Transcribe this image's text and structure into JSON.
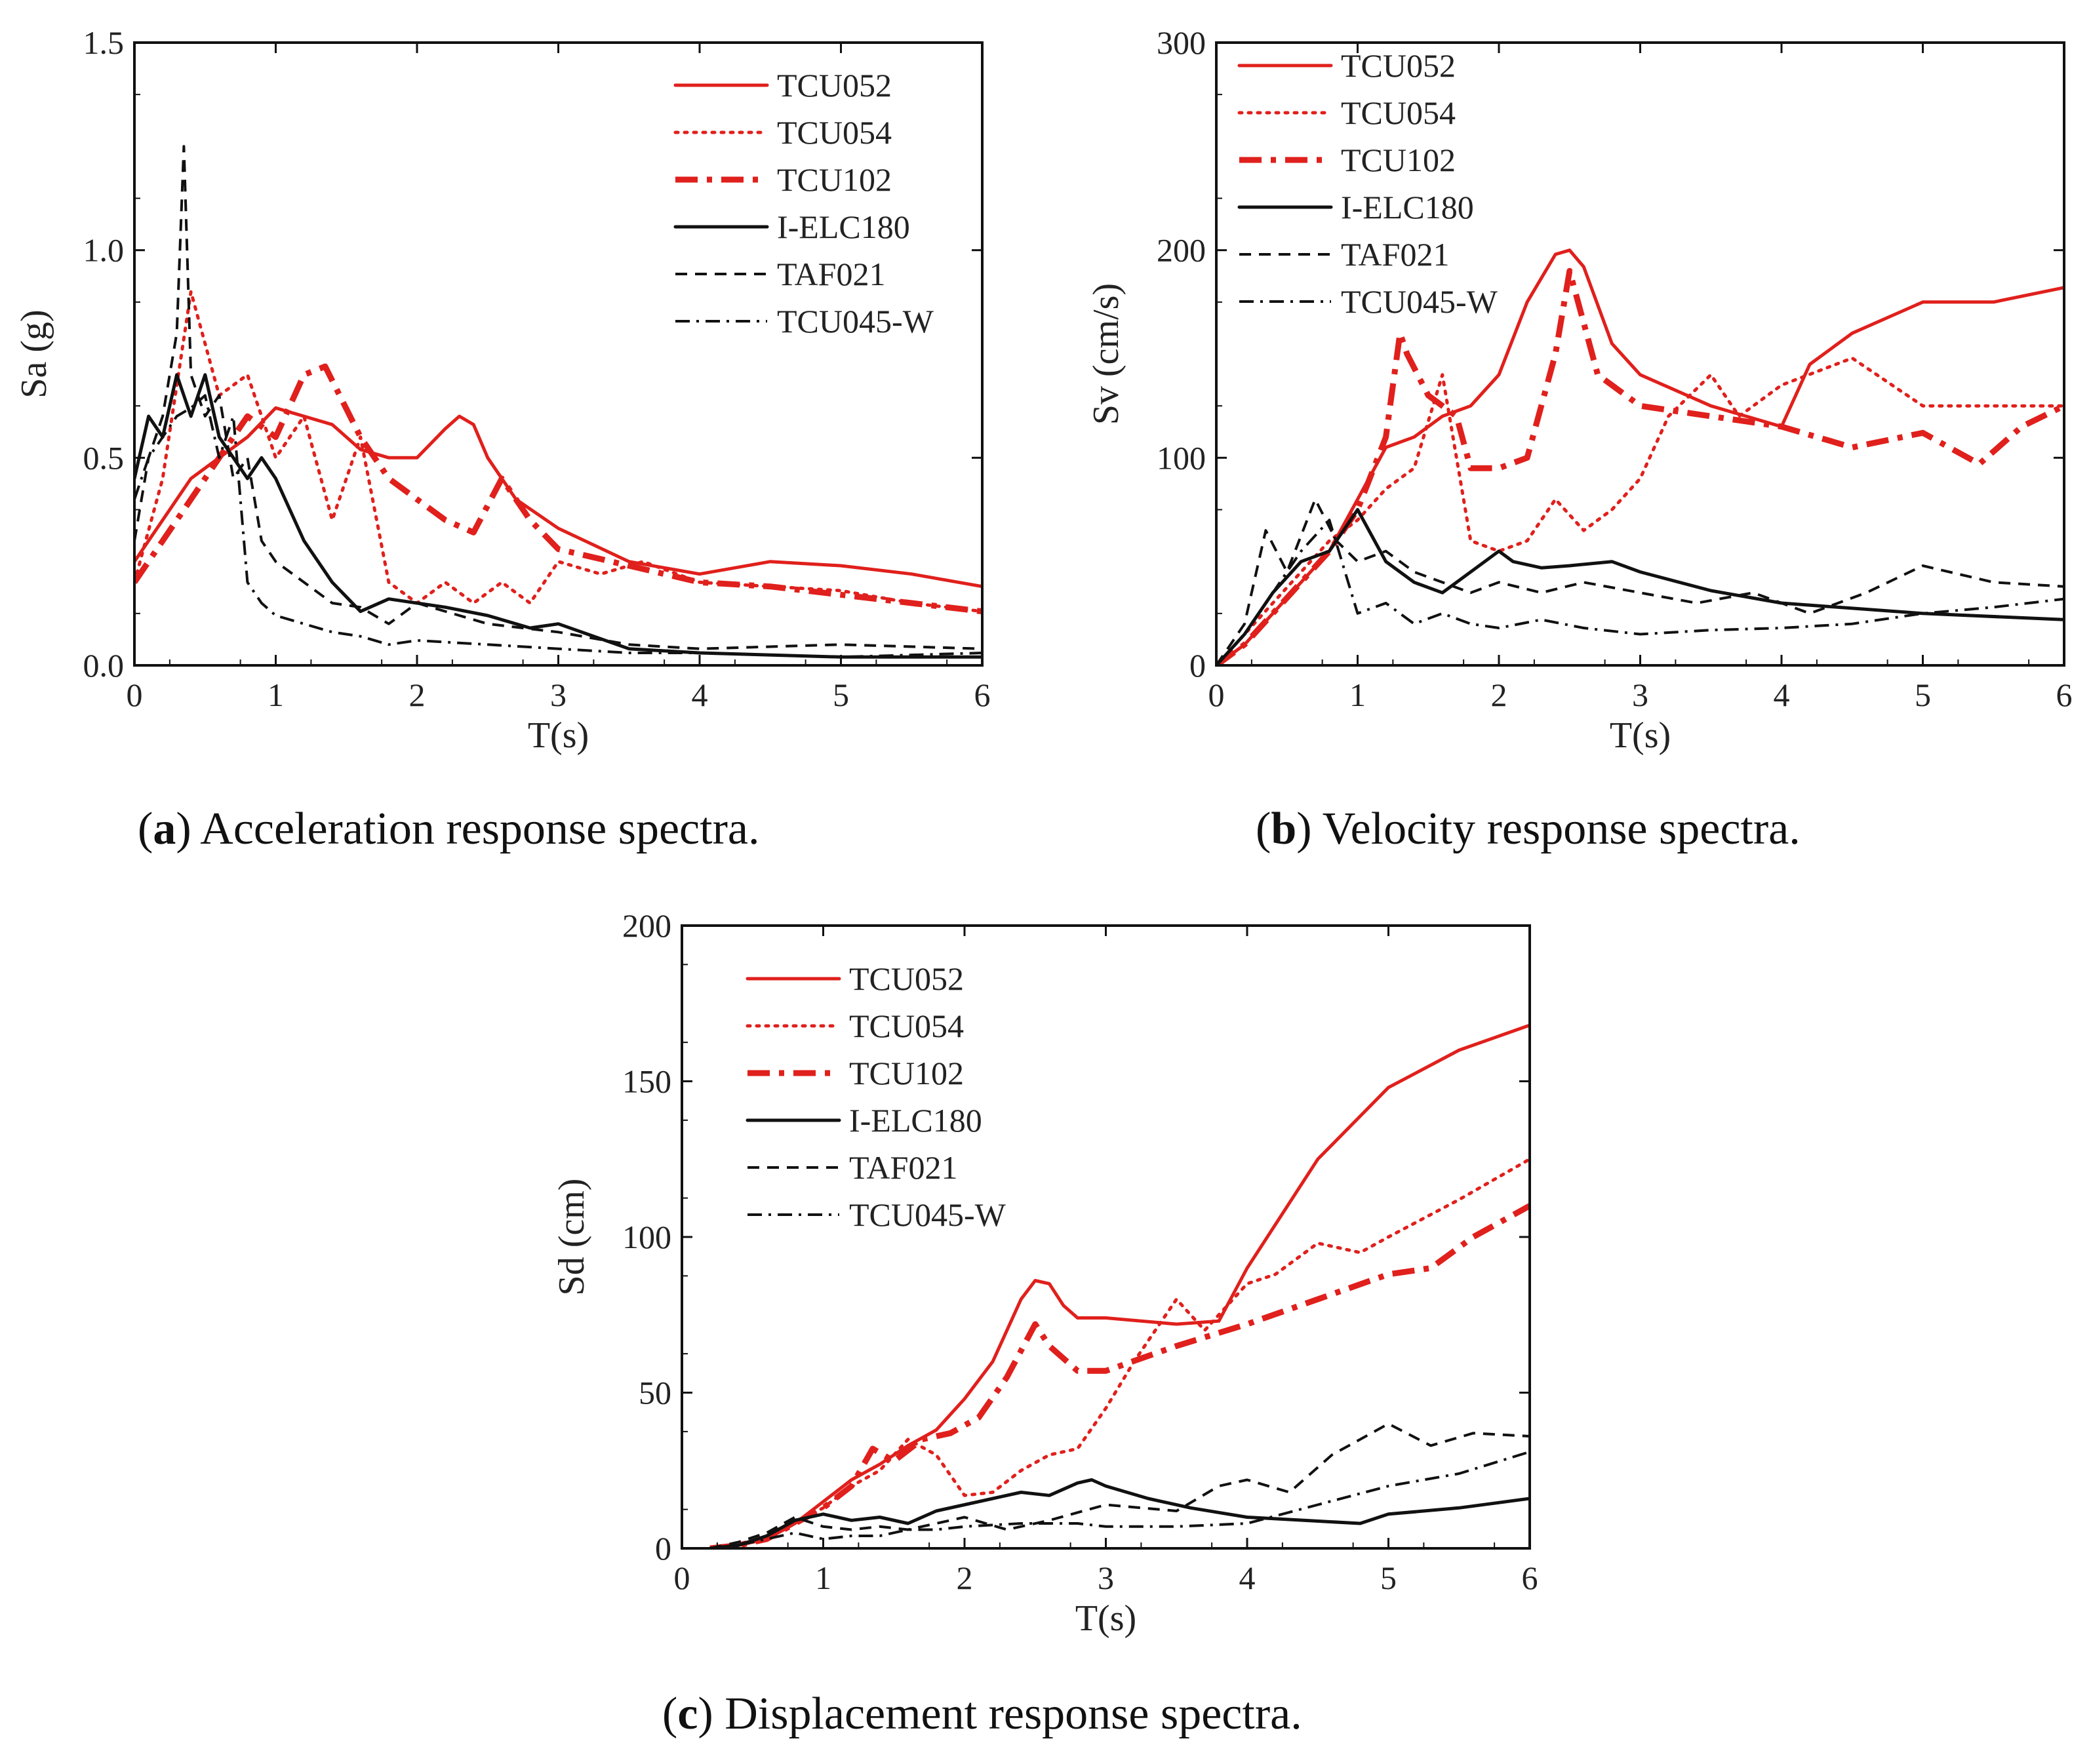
{
  "figure_captions": [
    {
      "letter": "a",
      "text": ") Acceleration response spectra."
    },
    {
      "letter": "b",
      "text": ") Velocity response spectra."
    },
    {
      "letter": "c",
      "text": ") Displacement response spectra."
    }
  ],
  "styles": {
    "TCU052": {
      "color": "#e0201c",
      "dash": "solid"
    },
    "TCU054": {
      "color": "#e0201c",
      "dash": "dot"
    },
    "TCU102": {
      "color": "#e0201c",
      "dash": "dashdot-thick"
    },
    "I-ELC180": {
      "color": "#111111",
      "dash": "solid"
    },
    "TAF021": {
      "color": "#111111",
      "dash": "dash"
    },
    "TCU045-W": {
      "color": "#111111",
      "dash": "dashdot"
    }
  },
  "chart_data": [
    {
      "type": "line",
      "id": "a",
      "title": "",
      "xlabel": "T(s)",
      "ylabel": "Sa (g)",
      "xlim": [
        0,
        6
      ],
      "ylim": [
        0,
        1.5
      ],
      "xticks": [
        "0",
        "1",
        "2",
        "3",
        "4",
        "5",
        "6"
      ],
      "yticks": [
        "0.0",
        "0.5",
        "1.0",
        "1.5"
      ],
      "legend_position": "top-right",
      "series": [
        {
          "name": "TCU052",
          "x": [
            0,
            0.2,
            0.4,
            0.6,
            0.8,
            1.0,
            1.2,
            1.4,
            1.6,
            1.8,
            2.0,
            2.2,
            2.3,
            2.4,
            2.5,
            2.7,
            3.0,
            3.5,
            4.0,
            4.5,
            5.0,
            5.5,
            6.0
          ],
          "y": [
            0.25,
            0.35,
            0.45,
            0.5,
            0.55,
            0.62,
            0.6,
            0.58,
            0.52,
            0.5,
            0.5,
            0.57,
            0.6,
            0.58,
            0.5,
            0.4,
            0.33,
            0.25,
            0.22,
            0.25,
            0.24,
            0.22,
            0.19
          ]
        },
        {
          "name": "TCU054",
          "x": [
            0,
            0.2,
            0.4,
            0.6,
            0.8,
            1.0,
            1.2,
            1.4,
            1.6,
            1.8,
            2.0,
            2.2,
            2.4,
            2.6,
            2.8,
            3.0,
            3.3,
            3.6,
            4.0,
            4.5,
            5.0,
            5.5,
            6.0
          ],
          "y": [
            0.2,
            0.45,
            0.9,
            0.65,
            0.7,
            0.5,
            0.6,
            0.35,
            0.55,
            0.2,
            0.15,
            0.2,
            0.15,
            0.2,
            0.15,
            0.25,
            0.22,
            0.25,
            0.2,
            0.19,
            0.18,
            0.15,
            0.13
          ]
        },
        {
          "name": "TCU102",
          "x": [
            0,
            0.2,
            0.4,
            0.6,
            0.8,
            1.0,
            1.2,
            1.35,
            1.6,
            1.8,
            2.0,
            2.2,
            2.4,
            2.6,
            2.8,
            3.0,
            3.5,
            4.0,
            4.5,
            5.0,
            5.5,
            6.0
          ],
          "y": [
            0.2,
            0.3,
            0.4,
            0.5,
            0.6,
            0.55,
            0.7,
            0.72,
            0.55,
            0.45,
            0.4,
            0.35,
            0.32,
            0.45,
            0.35,
            0.28,
            0.24,
            0.2,
            0.19,
            0.17,
            0.15,
            0.13
          ]
        },
        {
          "name": "I-ELC180",
          "x": [
            0,
            0.1,
            0.2,
            0.3,
            0.4,
            0.5,
            0.6,
            0.7,
            0.8,
            0.9,
            1.0,
            1.2,
            1.4,
            1.6,
            1.8,
            2.0,
            2.2,
            2.5,
            2.8,
            3.0,
            3.5,
            4.0,
            5.0,
            6.0
          ],
          "y": [
            0.45,
            0.6,
            0.55,
            0.7,
            0.6,
            0.7,
            0.55,
            0.5,
            0.45,
            0.5,
            0.45,
            0.3,
            0.2,
            0.13,
            0.16,
            0.15,
            0.14,
            0.12,
            0.09,
            0.1,
            0.04,
            0.03,
            0.02,
            0.02
          ]
        },
        {
          "name": "TAF021",
          "x": [
            0,
            0.1,
            0.2,
            0.3,
            0.35,
            0.4,
            0.5,
            0.6,
            0.7,
            0.8,
            0.9,
            1.0,
            1.2,
            1.4,
            1.6,
            1.8,
            2.0,
            2.5,
            3.0,
            3.5,
            4.0,
            5.0,
            6.0
          ],
          "y": [
            0.3,
            0.5,
            0.6,
            0.8,
            1.25,
            0.7,
            0.6,
            0.65,
            0.45,
            0.5,
            0.3,
            0.25,
            0.2,
            0.15,
            0.14,
            0.1,
            0.15,
            0.1,
            0.08,
            0.05,
            0.04,
            0.05,
            0.04
          ]
        },
        {
          "name": "TCU045-W",
          "x": [
            0,
            0.1,
            0.2,
            0.3,
            0.4,
            0.5,
            0.6,
            0.7,
            0.8,
            0.9,
            1.0,
            1.2,
            1.4,
            1.6,
            1.8,
            2.0,
            2.5,
            3.0,
            3.5,
            4.0,
            5.0,
            6.0
          ],
          "y": [
            0.4,
            0.5,
            0.55,
            0.6,
            0.62,
            0.65,
            0.5,
            0.6,
            0.2,
            0.15,
            0.12,
            0.1,
            0.08,
            0.07,
            0.05,
            0.06,
            0.05,
            0.04,
            0.03,
            0.03,
            0.02,
            0.03
          ]
        }
      ]
    },
    {
      "type": "line",
      "id": "b",
      "title": "",
      "xlabel": "T(s)",
      "ylabel": "Sv (cm/s)",
      "xlim": [
        0,
        6
      ],
      "ylim": [
        0,
        300
      ],
      "xticks": [
        "0",
        "1",
        "2",
        "3",
        "4",
        "5",
        "6"
      ],
      "yticks": [
        "0",
        "100",
        "200",
        "300"
      ],
      "legend_position": "top-left",
      "series": [
        {
          "name": "TCU052",
          "x": [
            0,
            0.2,
            0.4,
            0.6,
            0.8,
            1.0,
            1.2,
            1.4,
            1.6,
            1.8,
            2.0,
            2.2,
            2.4,
            2.5,
            2.6,
            2.8,
            3.0,
            3.5,
            4.0,
            4.2,
            4.5,
            5.0,
            5.5,
            6.0
          ],
          "y": [
            0,
            10,
            25,
            40,
            55,
            80,
            105,
            110,
            120,
            125,
            140,
            175,
            198,
            200,
            192,
            155,
            140,
            125,
            115,
            145,
            160,
            175,
            175,
            182
          ]
        },
        {
          "name": "TCU054",
          "x": [
            0,
            0.2,
            0.4,
            0.6,
            0.8,
            1.0,
            1.2,
            1.4,
            1.6,
            1.8,
            2.0,
            2.2,
            2.4,
            2.6,
            2.8,
            3.0,
            3.2,
            3.5,
            3.7,
            4.0,
            4.5,
            5.0,
            5.5,
            6.0
          ],
          "y": [
            0,
            15,
            30,
            45,
            60,
            70,
            85,
            95,
            140,
            60,
            55,
            60,
            80,
            65,
            75,
            90,
            120,
            140,
            120,
            135,
            148,
            125,
            125,
            125
          ]
        },
        {
          "name": "TCU102",
          "x": [
            0,
            0.2,
            0.4,
            0.6,
            0.8,
            1.0,
            1.2,
            1.3,
            1.35,
            1.5,
            1.7,
            1.8,
            2.0,
            2.2,
            2.4,
            2.5,
            2.7,
            3.0,
            3.5,
            4.0,
            4.5,
            5.0,
            5.4,
            5.7,
            6.0
          ],
          "y": [
            0,
            10,
            25,
            40,
            55,
            75,
            110,
            160,
            150,
            130,
            120,
            95,
            95,
            100,
            150,
            190,
            140,
            125,
            120,
            115,
            105,
            112,
            97,
            115,
            125
          ]
        },
        {
          "name": "I-ELC180",
          "x": [
            0,
            0.2,
            0.4,
            0.6,
            0.8,
            0.95,
            1.0,
            1.2,
            1.4,
            1.6,
            1.8,
            2.0,
            2.1,
            2.3,
            2.5,
            2.8,
            3.0,
            3.5,
            4.0,
            5.0,
            6.0
          ],
          "y": [
            0,
            15,
            35,
            50,
            55,
            70,
            75,
            50,
            40,
            35,
            45,
            55,
            50,
            47,
            48,
            50,
            45,
            36,
            30,
            25,
            22
          ]
        },
        {
          "name": "TAF021",
          "x": [
            0,
            0.2,
            0.35,
            0.5,
            0.7,
            0.85,
            1.0,
            1.2,
            1.4,
            1.6,
            1.8,
            2.0,
            2.3,
            2.6,
            3.0,
            3.4,
            3.8,
            4.2,
            4.6,
            5.0,
            5.5,
            6.0
          ],
          "y": [
            0,
            20,
            65,
            45,
            80,
            60,
            50,
            55,
            45,
            40,
            35,
            40,
            35,
            40,
            35,
            30,
            35,
            25,
            35,
            48,
            40,
            38
          ]
        },
        {
          "name": "TCU045-W",
          "x": [
            0,
            0.2,
            0.4,
            0.6,
            0.8,
            1.0,
            1.2,
            1.4,
            1.6,
            1.8,
            2.0,
            2.3,
            2.6,
            3.0,
            3.5,
            4.0,
            4.5,
            5.0,
            5.5,
            6.0
          ],
          "y": [
            0,
            15,
            35,
            55,
            70,
            25,
            30,
            20,
            25,
            20,
            18,
            22,
            18,
            15,
            17,
            18,
            20,
            25,
            28,
            32
          ]
        }
      ]
    },
    {
      "type": "line",
      "id": "c",
      "title": "",
      "xlabel": "T(s)",
      "ylabel": "Sd (cm)",
      "xlim": [
        0,
        6
      ],
      "ylim": [
        0,
        200
      ],
      "xticks": [
        "0",
        "1",
        "2",
        "3",
        "4",
        "5",
        "6"
      ],
      "yticks": [
        "0",
        "50",
        "100",
        "150",
        "200"
      ],
      "legend_position": "top-left",
      "series": [
        {
          "name": "TCU052",
          "x": [
            0.2,
            0.4,
            0.6,
            0.8,
            1.0,
            1.2,
            1.4,
            1.6,
            1.8,
            2.0,
            2.2,
            2.4,
            2.5,
            2.6,
            2.7,
            2.8,
            3.0,
            3.5,
            3.8,
            4.0,
            4.5,
            5.0,
            5.5,
            6.0
          ],
          "y": [
            0,
            1,
            3,
            8,
            15,
            22,
            27,
            33,
            38,
            48,
            60,
            80,
            86,
            85,
            78,
            74,
            74,
            72,
            73,
            90,
            125,
            148,
            160,
            168
          ]
        },
        {
          "name": "TCU054",
          "x": [
            0.2,
            0.4,
            0.6,
            0.8,
            1.0,
            1.2,
            1.4,
            1.6,
            1.8,
            2.0,
            2.2,
            2.4,
            2.6,
            2.8,
            3.0,
            3.2,
            3.5,
            3.7,
            4.0,
            4.2,
            4.5,
            4.8,
            5.0,
            5.5,
            6.0
          ],
          "y": [
            0,
            1,
            3,
            8,
            13,
            20,
            25,
            35,
            30,
            17,
            18,
            25,
            30,
            32,
            45,
            60,
            80,
            70,
            85,
            88,
            98,
            95,
            100,
            112,
            125
          ]
        },
        {
          "name": "TCU102",
          "x": [
            0.2,
            0.4,
            0.6,
            0.8,
            1.0,
            1.2,
            1.35,
            1.5,
            1.7,
            1.9,
            2.1,
            2.3,
            2.5,
            2.6,
            2.8,
            3.0,
            3.5,
            4.0,
            4.5,
            5.0,
            5.3,
            5.6,
            6.0
          ],
          "y": [
            0,
            1,
            3,
            8,
            13,
            20,
            32,
            28,
            35,
            37,
            42,
            55,
            72,
            65,
            57,
            57,
            65,
            72,
            80,
            88,
            90,
            100,
            110
          ]
        },
        {
          "name": "I-ELC180",
          "x": [
            0.2,
            0.4,
            0.6,
            0.8,
            1.0,
            1.2,
            1.4,
            1.6,
            1.8,
            2.0,
            2.2,
            2.4,
            2.6,
            2.8,
            2.9,
            3.0,
            3.3,
            3.6,
            4.0,
            4.4,
            4.8,
            5.0,
            5.5,
            6.0
          ],
          "y": [
            0,
            1,
            4,
            9,
            11,
            9,
            10,
            8,
            12,
            14,
            16,
            18,
            17,
            21,
            22,
            20,
            16,
            13,
            10,
            9,
            8,
            11,
            13,
            16
          ]
        },
        {
          "name": "TAF021",
          "x": [
            0.2,
            0.4,
            0.6,
            0.8,
            1.0,
            1.2,
            1.4,
            1.6,
            1.8,
            2.0,
            2.3,
            2.6,
            3.0,
            3.5,
            3.8,
            4.0,
            4.3,
            4.6,
            5.0,
            5.3,
            5.6,
            6.0
          ],
          "y": [
            0,
            2,
            5,
            10,
            7,
            6,
            7,
            6,
            8,
            10,
            6,
            9,
            14,
            12,
            20,
            22,
            18,
            30,
            40,
            33,
            37,
            36
          ]
        },
        {
          "name": "TCU045-W",
          "x": [
            0.2,
            0.4,
            0.6,
            0.8,
            1.0,
            1.2,
            1.4,
            1.6,
            1.8,
            2.0,
            2.4,
            2.8,
            3.0,
            3.5,
            4.0,
            4.5,
            5.0,
            5.5,
            6.0
          ],
          "y": [
            0,
            1,
            3,
            5,
            3,
            4,
            4,
            6,
            6,
            7,
            8,
            8,
            7,
            7,
            8,
            14,
            20,
            24,
            31
          ]
        }
      ]
    }
  ]
}
